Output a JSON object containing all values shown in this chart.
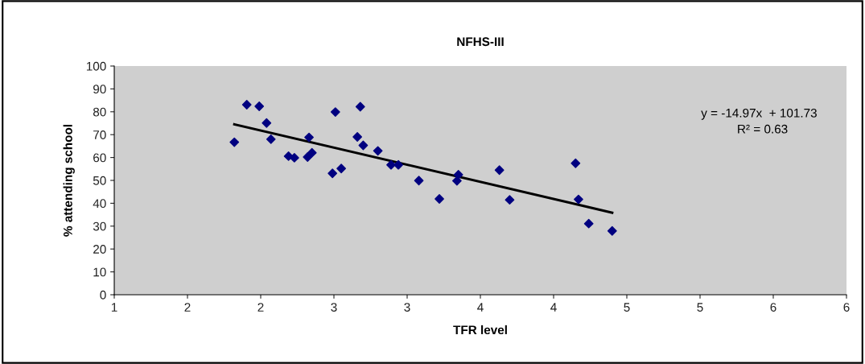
{
  "chart_data": {
    "type": "scatter",
    "title": "NFHS-III",
    "xlabel": "TFR level",
    "ylabel": "% attending school",
    "xlim": [
      1,
      6
    ],
    "ylim": [
      0,
      100
    ],
    "xticks": [
      1,
      {
        "value": 1.5,
        "label": "2"
      },
      2,
      {
        "value": 2.5,
        "label": "3"
      },
      3,
      {
        "value": 3.5,
        "label": "4"
      },
      4,
      {
        "value": 4.5,
        "label": "5"
      },
      5,
      {
        "value": 5.5,
        "label": "6"
      },
      6
    ],
    "yticks": [
      0,
      10,
      20,
      30,
      40,
      50,
      60,
      70,
      80,
      90,
      100
    ],
    "grid": false,
    "legend": false,
    "series": [
      {
        "marker": "diamond",
        "color": "#000080",
        "x": [
          1.82,
          1.905,
          1.99,
          2.04,
          2.07,
          2.19,
          2.23,
          2.32,
          2.35,
          2.33,
          2.49,
          2.55,
          2.51,
          2.68,
          2.66,
          2.7,
          2.8,
          2.89,
          2.94,
          3.08,
          3.22,
          3.34,
          3.35,
          3.63,
          3.7,
          4.15,
          4.17,
          4.24,
          4.4
        ],
        "values": [
          66.7,
          83.1,
          82.4,
          75.1,
          68.0,
          60.6,
          59.9,
          60.2,
          62.1,
          68.8,
          53.1,
          55.2,
          79.9,
          82.2,
          69.0,
          65.3,
          62.9,
          56.8,
          56.8,
          49.9,
          41.9,
          49.8,
          52.5,
          54.5,
          41.5,
          57.5,
          41.7,
          31.1,
          27.9
        ]
      },
      {
        "type": "line",
        "marker": "none",
        "color": "#000000",
        "x": [
          1.82,
          4.4
        ],
        "values": [
          74.5,
          35.9
        ]
      }
    ],
    "annotations": [
      "y = -14.97x  + 101.73",
      "R² = 0.63"
    ]
  }
}
